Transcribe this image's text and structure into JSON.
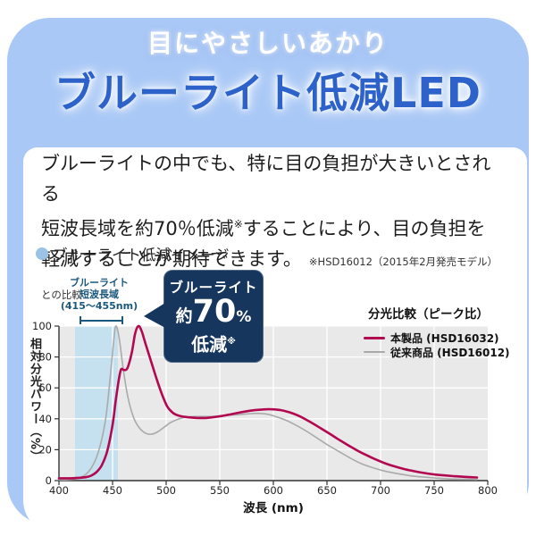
{
  "header": {
    "subtitle": "目にやさしいあかり",
    "title": "ブルーライト低減LED"
  },
  "body": {
    "line1": "ブルーライトの中でも、特に目の負担が大きいとされる",
    "line2_pre": "短波長域を約70％低減",
    "note_mark": "※",
    "line2_post": "することにより、目の負担を",
    "line3": "軽減することが期待できます。",
    "footnote": "※HSD16012（2015年2月発売モデル）との比較"
  },
  "section": {
    "heading": "ブルーライト低減イメージ"
  },
  "chart": {
    "band_label_line1": "ブルーライト",
    "band_label_line2": "短波長域",
    "band_label_line3": "(415～455nm)",
    "callout": {
      "line1": "ブルーライト",
      "prefix": "約",
      "value": "70",
      "unit": "%",
      "line3": "低減",
      "note_mark": "※"
    }
  },
  "colors": {
    "card_blue": "#a9c8f6",
    "title_blue": "#2d62ca",
    "callout_navy": "#16365e",
    "band_label_blue": "#1a587e",
    "band_fill": "#c5e0ee",
    "plot_bg": "#e9e9ea",
    "grid": "#ffffff",
    "axis": "#333333",
    "series_red": "#b1084f",
    "series_gray": "#aaaaaa"
  },
  "chart_data": {
    "type": "line",
    "title": "分光比較（ピーク比）",
    "xlabel": "波長 (nm)",
    "ylabel": "相対分光パワー（%）",
    "xlim": [
      400,
      800
    ],
    "ylim": [
      0,
      100
    ],
    "x_ticks": [
      400,
      450,
      500,
      550,
      600,
      650,
      700,
      750,
      800
    ],
    "y_ticks": [
      0,
      20,
      40,
      60,
      80,
      100
    ],
    "grid": true,
    "legend_position": "top-right-inside",
    "highlight_band": {
      "from": 415,
      "to": 455,
      "label": "ブルーライト短波長域 (415～455nm)"
    },
    "annotation": "ブルーライト約70%低減※",
    "series": [
      {
        "name": "本製品 (HSD16032)",
        "color": "#b1084f",
        "points": [
          [
            400,
            1.5
          ],
          [
            410,
            1.5
          ],
          [
            418,
            1.8
          ],
          [
            425,
            2.2
          ],
          [
            430,
            3.2
          ],
          [
            435,
            5.5
          ],
          [
            440,
            10
          ],
          [
            445,
            19
          ],
          [
            450,
            36
          ],
          [
            453,
            52
          ],
          [
            456,
            66
          ],
          [
            458,
            72
          ],
          [
            461,
            71.5
          ],
          [
            464,
            73
          ],
          [
            468,
            83
          ],
          [
            471,
            95
          ],
          [
            474,
            100
          ],
          [
            477,
            97
          ],
          [
            481,
            88
          ],
          [
            486,
            77
          ],
          [
            491,
            66
          ],
          [
            496,
            56
          ],
          [
            501,
            48
          ],
          [
            506,
            44
          ],
          [
            511,
            42.2
          ],
          [
            518,
            41.2
          ],
          [
            528,
            40.6
          ],
          [
            538,
            40.6
          ],
          [
            548,
            41.4
          ],
          [
            558,
            42.6
          ],
          [
            568,
            44
          ],
          [
            578,
            45.2
          ],
          [
            588,
            45.9
          ],
          [
            597,
            46.2
          ],
          [
            606,
            45.7
          ],
          [
            615,
            44.2
          ],
          [
            624,
            41.8
          ],
          [
            633,
            38.5
          ],
          [
            642,
            34.8
          ],
          [
            651,
            31
          ],
          [
            660,
            27
          ],
          [
            669,
            23.2
          ],
          [
            678,
            19.6
          ],
          [
            687,
            16.4
          ],
          [
            696,
            13.5
          ],
          [
            705,
            11
          ],
          [
            714,
            9
          ],
          [
            723,
            7.3
          ],
          [
            732,
            6
          ],
          [
            741,
            4.9
          ],
          [
            750,
            4
          ],
          [
            759,
            3.4
          ],
          [
            768,
            2.9
          ],
          [
            777,
            2.5
          ],
          [
            785,
            2.2
          ],
          [
            790,
            2
          ]
        ]
      },
      {
        "name": "従来商品 (HSD16012)",
        "color": "#aaaaaa",
        "points": [
          [
            400,
            0.5
          ],
          [
            408,
            0.5
          ],
          [
            415,
            1
          ],
          [
            420,
            2
          ],
          [
            425,
            4
          ],
          [
            430,
            8
          ],
          [
            435,
            15
          ],
          [
            440,
            27
          ],
          [
            444,
            42
          ],
          [
            448,
            68
          ],
          [
            451,
            90
          ],
          [
            453,
            100
          ],
          [
            456,
            93
          ],
          [
            460,
            72
          ],
          [
            464,
            55
          ],
          [
            469,
            42
          ],
          [
            474,
            35
          ],
          [
            480,
            31
          ],
          [
            486,
            30
          ],
          [
            492,
            31.5
          ],
          [
            498,
            34.5
          ],
          [
            504,
            37.5
          ],
          [
            510,
            39.5
          ],
          [
            518,
            41
          ],
          [
            528,
            41.5
          ],
          [
            540,
            41.5
          ],
          [
            552,
            42
          ],
          [
            564,
            42.5
          ],
          [
            576,
            43.2
          ],
          [
            585,
            43.5
          ],
          [
            594,
            43
          ],
          [
            602,
            41.5
          ],
          [
            612,
            39
          ],
          [
            622,
            35.5
          ],
          [
            632,
            31.5
          ],
          [
            642,
            27
          ],
          [
            652,
            22.5
          ],
          [
            662,
            18.5
          ],
          [
            672,
            14.5
          ],
          [
            682,
            11
          ],
          [
            692,
            8.5
          ],
          [
            702,
            6.5
          ],
          [
            712,
            5
          ],
          [
            722,
            3.8
          ],
          [
            732,
            2.8
          ],
          [
            742,
            2.2
          ],
          [
            752,
            1.6
          ],
          [
            762,
            1.2
          ],
          [
            772,
            1
          ],
          [
            782,
            0.8
          ],
          [
            790,
            0.7
          ]
        ]
      }
    ]
  }
}
